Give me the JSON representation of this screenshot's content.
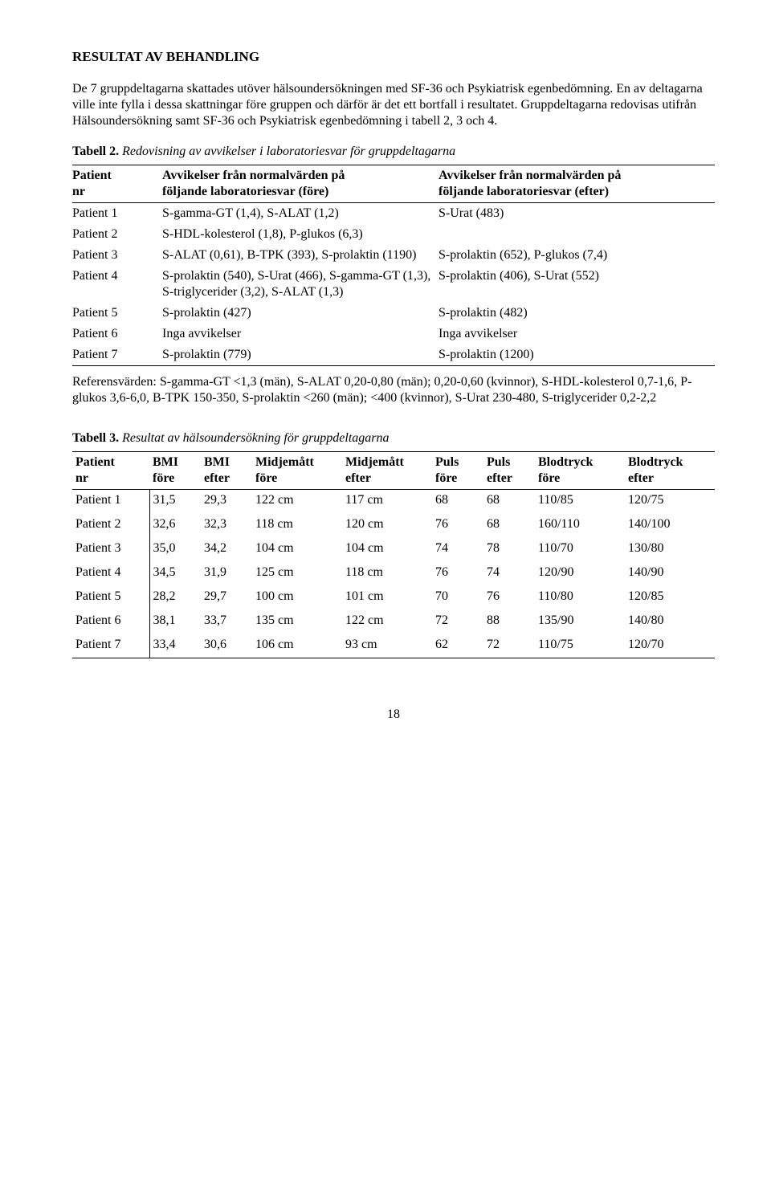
{
  "heading": "RESULTAT AV BEHANDLING",
  "intro": "De 7 gruppdeltagarna skattades utöver hälsoundersökningen med SF-36 och Psykiatrisk egenbedömning. En av deltagarna ville inte fylla i dessa skattningar före gruppen och därför är det ett bortfall i resultatet. Gruppdeltagarna redovisas utifrån Hälsoundersökning samt SF-36 och Psykiatrisk egenbedömning i tabell 2, 3 och 4.",
  "tabell2": {
    "label": "Tabell 2.",
    "caption": "Redovisning av avvikelser i laboratoriesvar för gruppdeltagarna",
    "head": {
      "c1a": "Patient",
      "c1b": "nr",
      "c2a": "Avvikelser från normalvärden på",
      "c2b": "följande laboratoriesvar (före)",
      "c3a": "Avvikelser från normalvärden på",
      "c3b": "följande laboratoriesvar (efter)"
    },
    "rows": [
      {
        "p": "Patient 1",
        "before": "S-gamma-GT (1,4), S-ALAT (1,2)",
        "after": "S-Urat (483)"
      },
      {
        "p": "Patient 2",
        "before": "S-HDL-kolesterol (1,8), P-glukos (6,3)",
        "after": "",
        "gap": true
      },
      {
        "p": "Patient 3",
        "before": "S-ALAT (0,61), B-TPK (393), S-prolaktin (1190)",
        "after": "S-prolaktin (652), P-glukos (7,4)"
      },
      {
        "p": "Patient 4",
        "before": "S-prolaktin (540), S-Urat (466), S-gamma-GT (1,3), S-triglycerider (3,2), S-ALAT (1,3)",
        "after": "S-prolaktin (406), S-Urat (552)"
      },
      {
        "p": "Patient 5",
        "before": "S-prolaktin (427)",
        "after": "S-prolaktin (482)"
      },
      {
        "p": "Patient 6",
        "before": "Inga avvikelser",
        "after": "Inga avvikelser",
        "gap": true
      },
      {
        "p": "Patient 7",
        "before": "S-prolaktin (779)",
        "after": "S-prolaktin (1200)",
        "gap": true
      }
    ]
  },
  "reference": "Referensvärden: S-gamma-GT <1,3 (män), S-ALAT 0,20-0,80 (män); 0,20-0,60 (kvinnor), S-HDL-kolesterol 0,7-1,6, P-glukos 3,6-6,0, B-TPK 150-350, S-prolaktin <260 (män); <400 (kvinnor), S-Urat 230-480, S-triglycerider 0,2-2,2",
  "tabell3": {
    "label": "Tabell 3.",
    "caption": "Resultat av hälsoundersökning för gruppdeltagarna",
    "head": {
      "c0a": "Patient",
      "c0b": "nr",
      "c1a": "BMI",
      "c1b": "före",
      "c2a": "BMI",
      "c2b": "efter",
      "c3a": "Midjemått",
      "c3b": "före",
      "c4a": "Midjemått",
      "c4b": "efter",
      "c5a": "Puls",
      "c5b": "före",
      "c6a": "Puls",
      "c6b": "efter",
      "c7a": "Blodtryck",
      "c7b": "före",
      "c8a": "Blodtryck",
      "c8b": "efter"
    },
    "rows": [
      {
        "p": "Patient 1",
        "bmi_f": "31,5",
        "bmi_e": "29,3",
        "mid_f": "122 cm",
        "mid_e": "117 cm",
        "puls_f": "68",
        "puls_e": "68",
        "bt_f": "110/85",
        "bt_e": "120/75"
      },
      {
        "p": "Patient 2",
        "bmi_f": "32,6",
        "bmi_e": "32,3",
        "mid_f": "118 cm",
        "mid_e": "120 cm",
        "puls_f": "76",
        "puls_e": "68",
        "bt_f": "160/110",
        "bt_e": "140/100"
      },
      {
        "p": "Patient 3",
        "bmi_f": "35,0",
        "bmi_e": "34,2",
        "mid_f": "104 cm",
        "mid_e": "104 cm",
        "puls_f": "74",
        "puls_e": "78",
        "bt_f": "110/70",
        "bt_e": "130/80"
      },
      {
        "p": "Patient 4",
        "bmi_f": "34,5",
        "bmi_e": "31,9",
        "mid_f": "125 cm",
        "mid_e": "118 cm",
        "puls_f": "76",
        "puls_e": "74",
        "bt_f": "120/90",
        "bt_e": "140/90"
      },
      {
        "p": "Patient 5",
        "bmi_f": "28,2",
        "bmi_e": "29,7",
        "mid_f": "100 cm",
        "mid_e": "101 cm",
        "puls_f": "70",
        "puls_e": "76",
        "bt_f": "110/80",
        "bt_e": "120/85"
      },
      {
        "p": "Patient 6",
        "bmi_f": "38,1",
        "bmi_e": "33,7",
        "mid_f": "135 cm",
        "mid_e": "122 cm",
        "puls_f": "72",
        "puls_e": "88",
        "bt_f": "135/90",
        "bt_e": "140/80"
      },
      {
        "p": "Patient 7",
        "bmi_f": "33,4",
        "bmi_e": "30,6",
        "mid_f": "106 cm",
        "mid_e": "93 cm",
        "puls_f": "62",
        "puls_e": "72",
        "bt_f": "110/75",
        "bt_e": "120/70"
      }
    ]
  },
  "page_number": "18"
}
